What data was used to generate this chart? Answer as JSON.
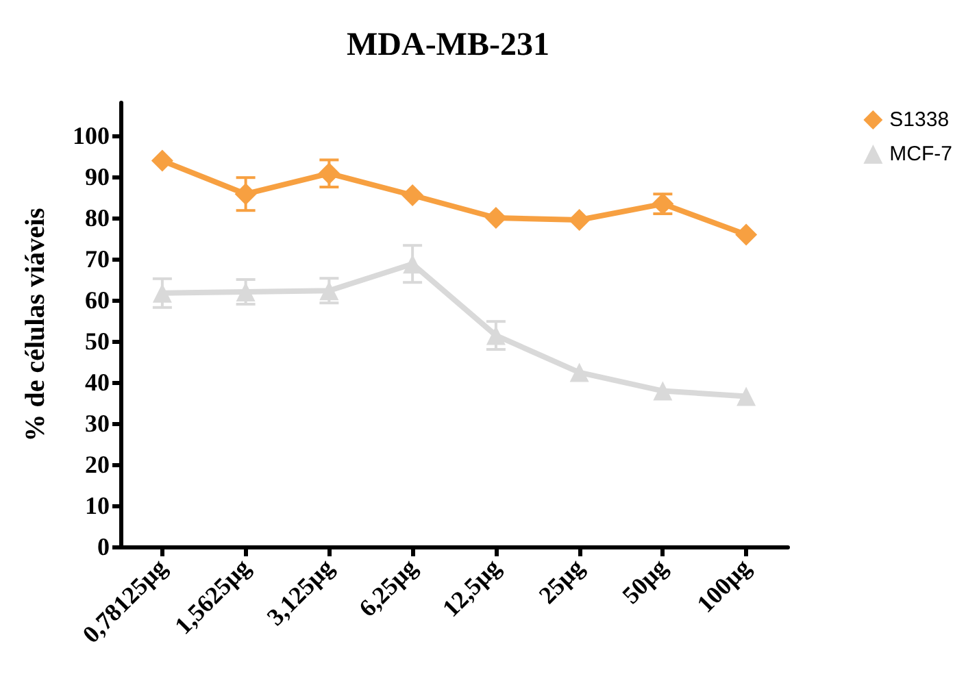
{
  "chart_data": {
    "type": "line",
    "title": "MDA-MB-231",
    "ylabel": "% de células viáveis",
    "categories": [
      "0,78125µg",
      "1,5625µg",
      "3,125µg",
      "6,25µg",
      "12,5µg",
      "25µg",
      "50µg",
      "100µg"
    ],
    "series": [
      {
        "name": "S1338",
        "color": "#f7a041",
        "marker": "diamond",
        "values": [
          93.9,
          85.8,
          90.8,
          85.5,
          80,
          79.5,
          83.4,
          75.9
        ],
        "errors": [
          null,
          4,
          3.3,
          null,
          null,
          null,
          2.4,
          null
        ]
      },
      {
        "name": "MCF-7",
        "color": "#d9d9d9",
        "marker": "triangle",
        "values": [
          61.7,
          62,
          62.3,
          68.8,
          51.4,
          42.4,
          37.9,
          36.6
        ],
        "errors": [
          3.5,
          3,
          3,
          4.5,
          3.4,
          null,
          null,
          null
        ]
      }
    ],
    "ylim": [
      0,
      108
    ],
    "yticks": [
      0,
      10,
      20,
      30,
      40,
      50,
      60,
      70,
      80,
      90,
      100
    ],
    "grid": false,
    "legend": "top right",
    "line_style": "solid"
  }
}
